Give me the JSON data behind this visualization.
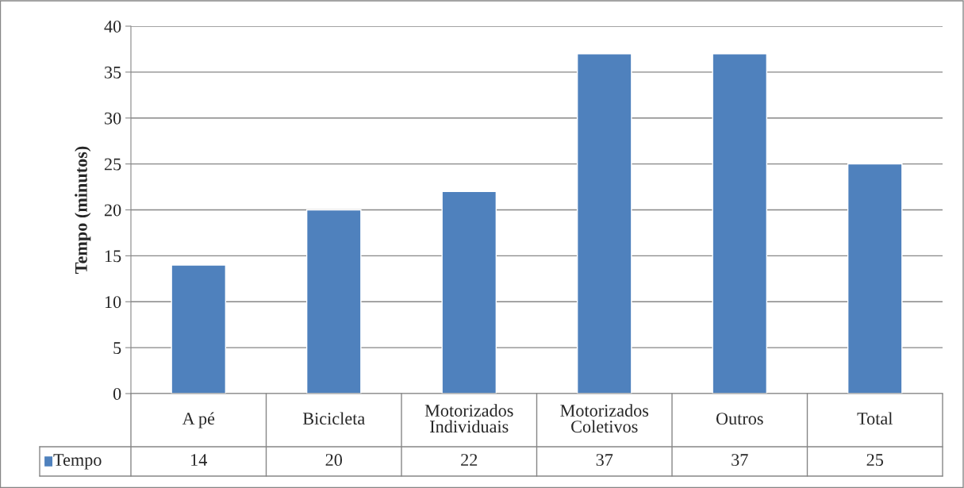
{
  "chart_data": {
    "type": "bar",
    "ylabel": "Tempo (minutos)",
    "categories": [
      "A pé",
      "Bicicleta",
      "Motorizados\nIndividuais",
      "Motorizados\nColetivos",
      "Outros",
      "Total"
    ],
    "series": [
      {
        "name": "Tempo",
        "color": "#4f81bd",
        "values": [
          14,
          20,
          22,
          37,
          37,
          25
        ]
      }
    ],
    "ylim": [
      0,
      40
    ],
    "yticks": [
      0,
      5,
      10,
      15,
      20,
      25,
      30,
      35,
      40
    ],
    "grid": "y",
    "legend": "bottom",
    "data_labels": true
  }
}
